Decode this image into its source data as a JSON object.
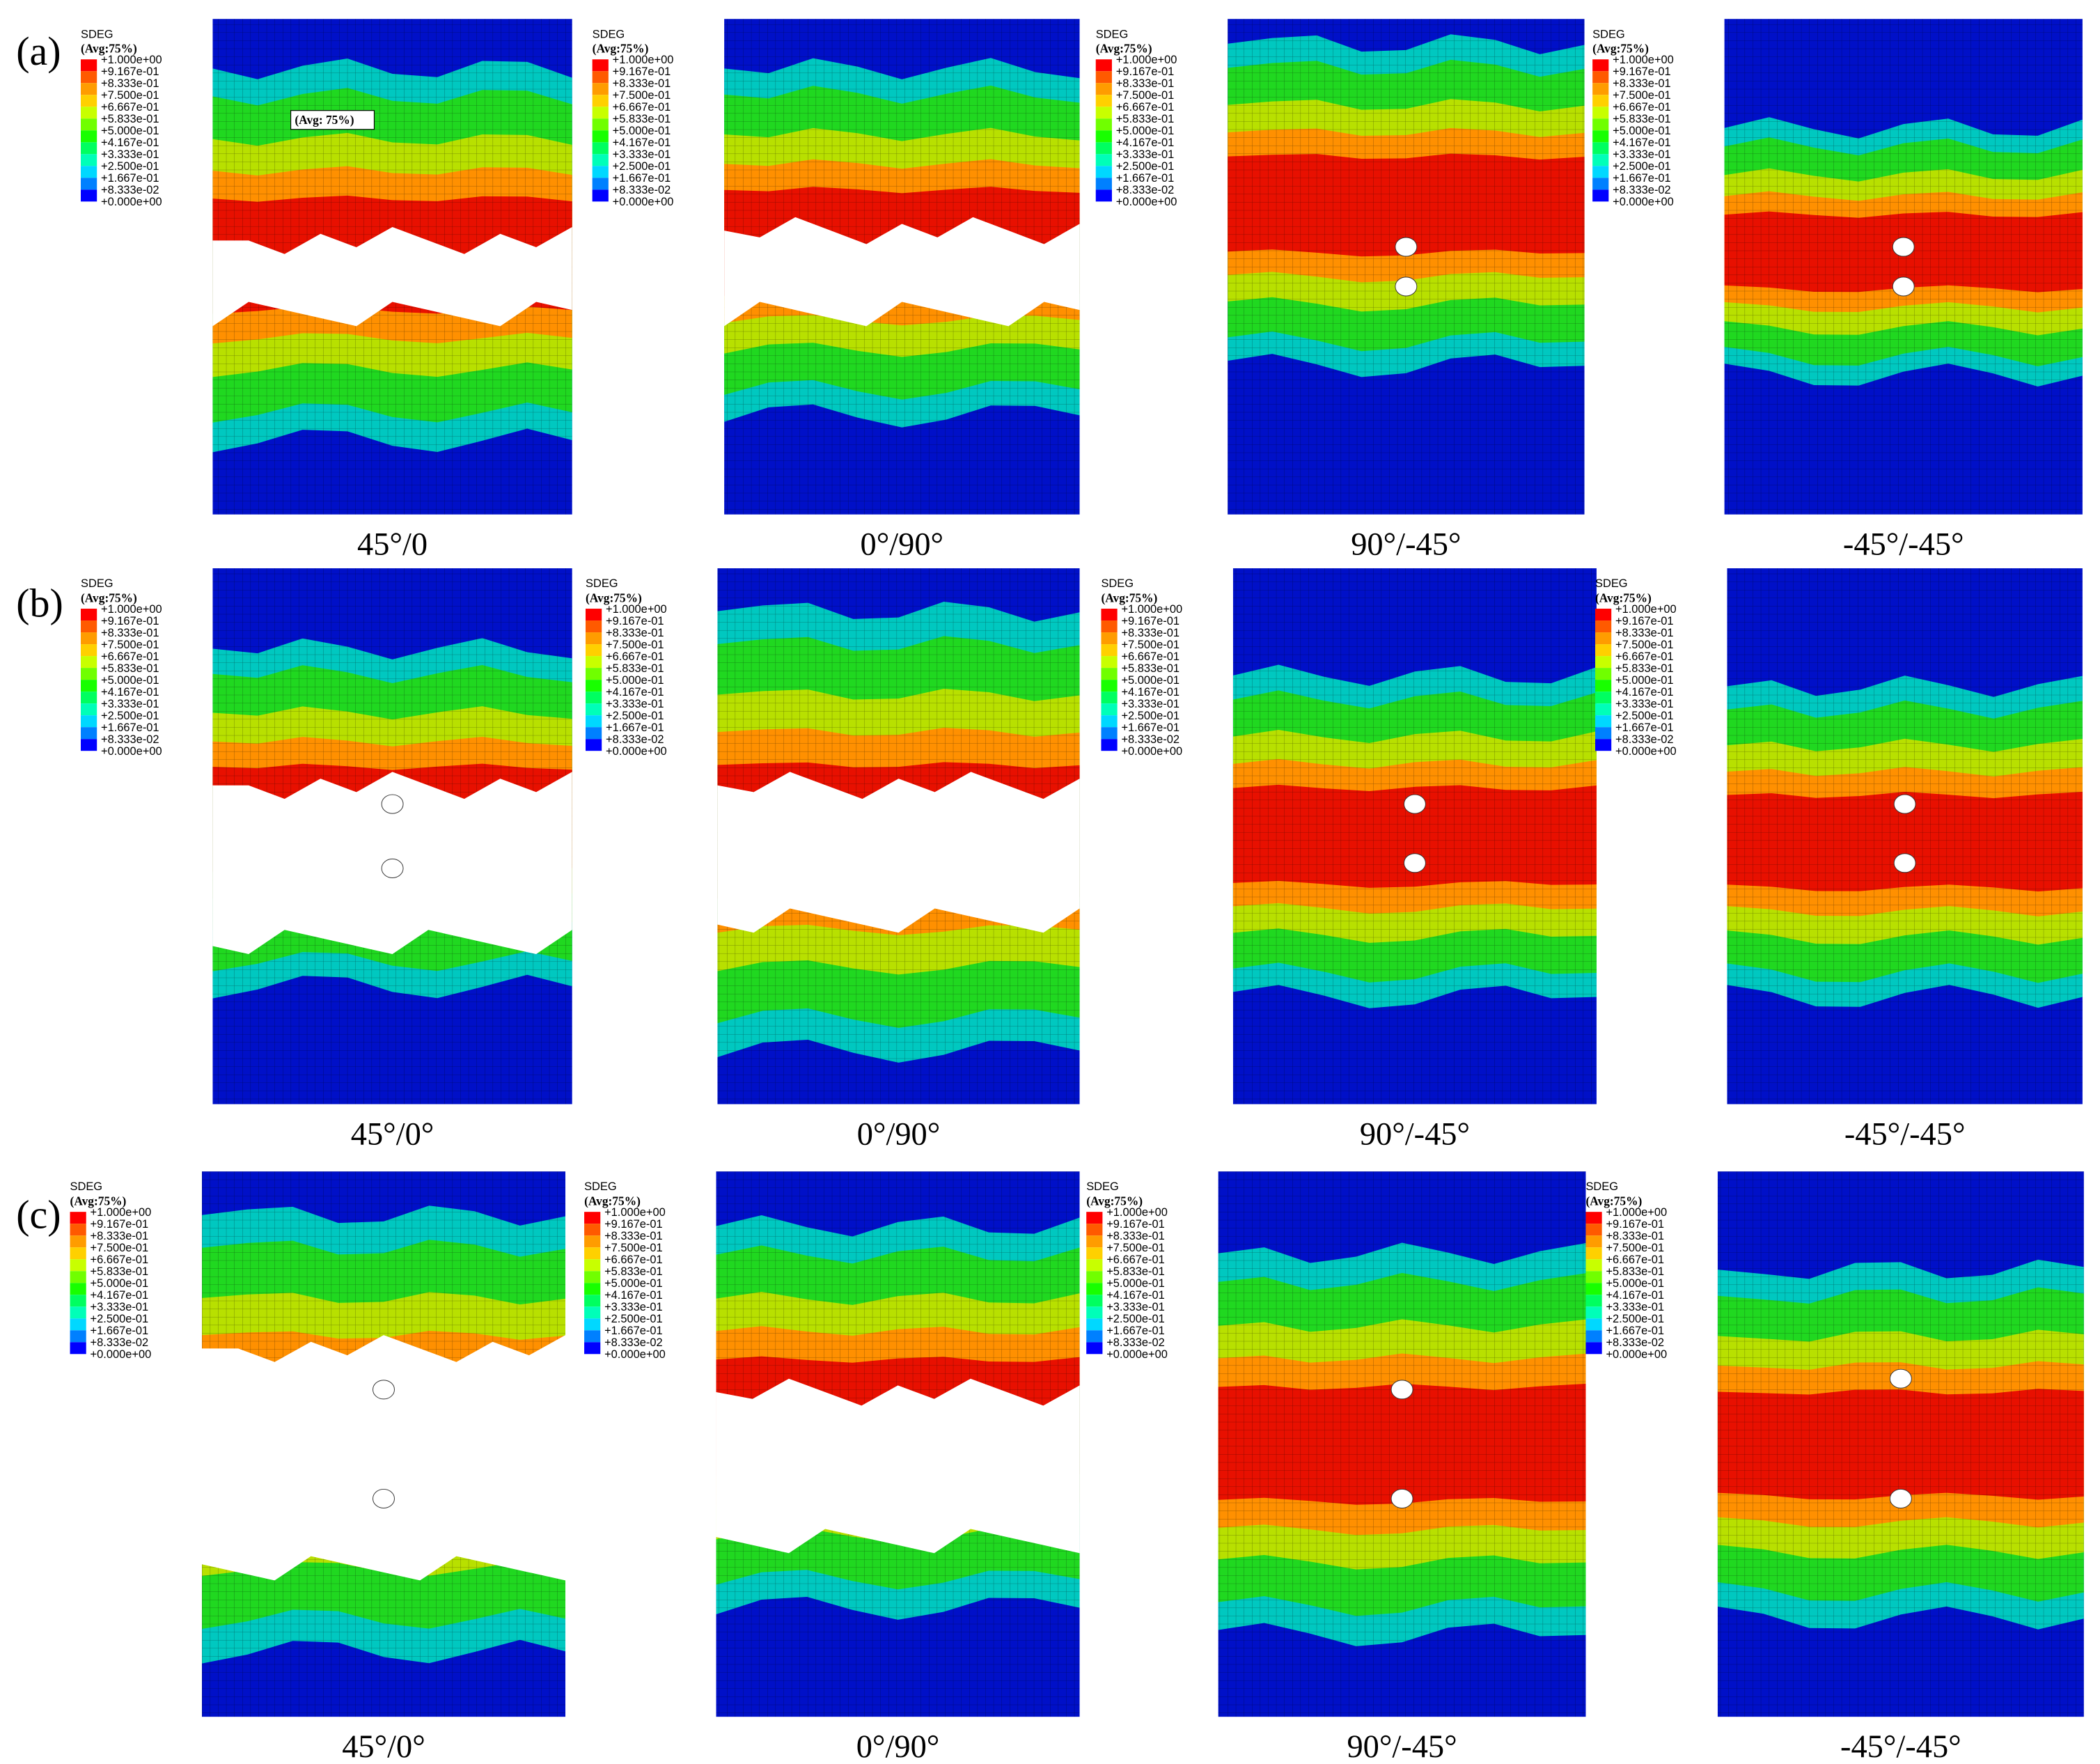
{
  "legend": {
    "title": "SDEG",
    "subtitle": "(Avg:75%)",
    "labels": [
      "+1.000e+00",
      "+9.167e-01",
      "+8.333e-01",
      "+7.500e-01",
      "+6.667e-01",
      "+5.833e-01",
      "+5.000e-01",
      "+4.167e-01",
      "+3.333e-01",
      "+2.500e-01",
      "+1.667e-01",
      "+8.333e-02",
      "+0.000e+00"
    ],
    "colors": [
      "#ff0000",
      "#ff5a00",
      "#ff9c00",
      "#ffd000",
      "#c8ff00",
      "#70ff00",
      "#18ff00",
      "#00ff60",
      "#00ffb8",
      "#00d8ff",
      "#0080ff",
      "#0000ff"
    ]
  },
  "rows": [
    {
      "label": "(a)",
      "panels": [
        {
          "caption": "45°/0",
          "annotation": "(Avg: 75%)"
        },
        {
          "caption": "0°/90°"
        },
        {
          "caption": "90°/-45°"
        },
        {
          "caption": "-45°/-45°"
        }
      ]
    },
    {
      "label": "(b)",
      "panels": [
        {
          "caption": "45°/0°"
        },
        {
          "caption": "0°/90°"
        },
        {
          "caption": "90°/-45°"
        },
        {
          "caption": "-45°/-45°"
        }
      ]
    },
    {
      "label": "(c)",
      "panels": [
        {
          "caption": "45°/0°"
        },
        {
          "caption": "0°/90°"
        },
        {
          "caption": "90°/-45°"
        },
        {
          "caption": "-45°/-45°"
        }
      ]
    }
  ]
}
